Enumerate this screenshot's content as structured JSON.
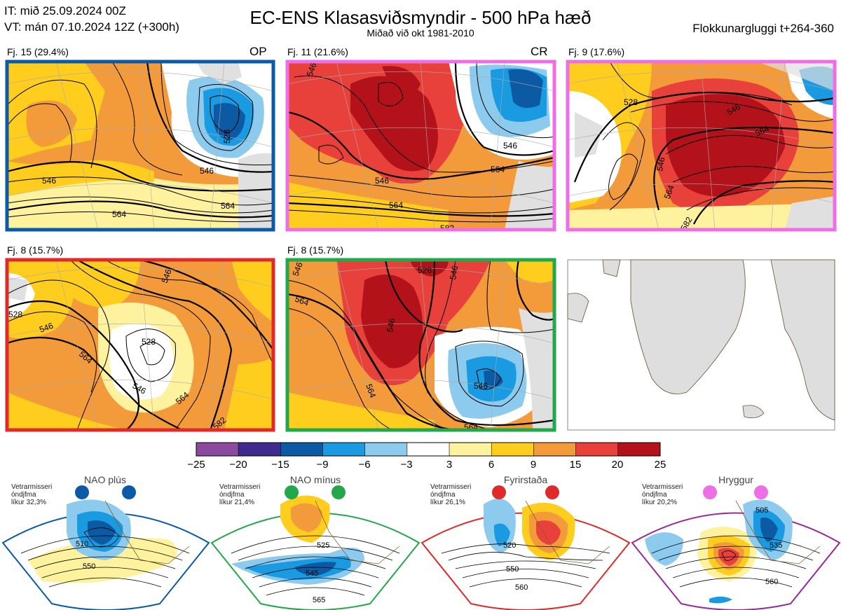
{
  "header": {
    "it": "IT: mið 25.09.2024 00Z",
    "vt": "VT: mán 07.10.2024 12Z  (+300h)",
    "title": "EC-ENS Klasasviðsmyndir - 500 hPa hæð",
    "subtitle": "Miðað við okt 1981-2010",
    "window": "Flokkunargluggi t+264-360"
  },
  "panels": [
    {
      "label": "Fj. 15 (29.4%)",
      "tag": "OP",
      "border": "#0a5aa8",
      "contours": [
        "546",
        "528",
        "546",
        "564",
        "564"
      ]
    },
    {
      "label": "Fj. 11 (21.6%)",
      "tag": "CR",
      "border": "#ee6ee6",
      "contours": [
        "546",
        "546",
        "546",
        "564",
        "564",
        "582"
      ]
    },
    {
      "label": "Fj. 9 (17.6%)",
      "tag": "",
      "border": "#ee6ee6",
      "contours": [
        "528",
        "546",
        "546",
        "564",
        "564",
        "582"
      ]
    },
    {
      "label": "Fj. 8 (15.7%)",
      "tag": "",
      "border": "#e02a2a",
      "contours": [
        "528",
        "546",
        "546",
        "528",
        "564",
        "546",
        "564",
        "582"
      ]
    },
    {
      "label": "Fj. 8 (15.7%)",
      "tag": "",
      "border": "#22a84a",
      "contours": [
        "546",
        "528",
        "546",
        "564",
        "546",
        "564",
        "546",
        "564"
      ]
    }
  ],
  "colorbar": {
    "ticks": [
      "−25",
      "−20",
      "−15",
      "−9",
      "−6",
      "−3",
      "3",
      "6",
      "9",
      "15",
      "20",
      "25"
    ],
    "colors": [
      "#8b4a9e",
      "#3f2a8e",
      "#0b5aa3",
      "#1a9ae0",
      "#8ccbee",
      "#ffffff",
      "#fff29e",
      "#ffcd1e",
      "#f39a3a",
      "#e8403a",
      "#b3121b"
    ]
  },
  "regimes": [
    {
      "name": "NAO plús",
      "note": "Vetrarmisseri\nóndjfma\nlíkur 32,3%",
      "color": "#0a5aa8",
      "contours": [
        "510",
        "550"
      ]
    },
    {
      "name": "NAO mínus",
      "note": "Vetrarmisseri\nóndjfma\nlíkur 21,4%",
      "color": "#22a84a",
      "contours": [
        "525",
        "545",
        "565"
      ]
    },
    {
      "name": "Fyrirstaða",
      "note": "Vetrarmisseri\nóndjfma\nlíkur 26,1%",
      "color": "#e02a2a",
      "contours": [
        "520",
        "550",
        "560"
      ]
    },
    {
      "name": "Hryggur",
      "note": "Vetrarmisseri\nóndjfma\nlíkur 20,2%",
      "color": "#ee6ee6",
      "contours": [
        "505",
        "535",
        "560"
      ]
    }
  ]
}
